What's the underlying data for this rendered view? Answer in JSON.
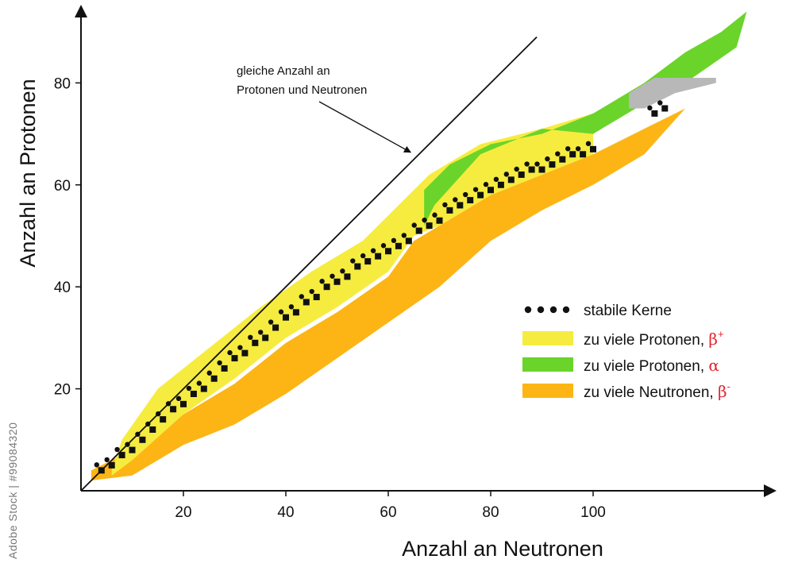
{
  "chart_data": {
    "type": "scatter",
    "xlabel": "Anzahl an Neutronen",
    "ylabel": "Anzahl an Protonen",
    "xticks": [
      20,
      40,
      60,
      80,
      100
    ],
    "yticks": [
      20,
      40,
      60,
      80
    ],
    "xlim": [
      0,
      136
    ],
    "ylim": [
      0,
      94
    ],
    "annotation": {
      "text_lines": [
        "gleiche Anzahl an",
        "Protonen und Neutronen"
      ],
      "reference_line": "N = Z",
      "arrow_target": [
        65,
        67
      ]
    },
    "legend_position": "right",
    "series": [
      {
        "name": "zu viele Neutronen,",
        "greek": "β",
        "sup": "-",
        "color": "#fdb515",
        "region_upper": [
          [
            2,
            4
          ],
          [
            10,
            8
          ],
          [
            20,
            15
          ],
          [
            30,
            21
          ],
          [
            40,
            29
          ],
          [
            50,
            35
          ],
          [
            60,
            42
          ],
          [
            65,
            49
          ],
          [
            70,
            52
          ],
          [
            80,
            58
          ],
          [
            90,
            62
          ],
          [
            100,
            66
          ],
          [
            110,
            71
          ],
          [
            118,
            75
          ]
        ],
        "region_lower": [
          [
            2,
            2
          ],
          [
            10,
            3
          ],
          [
            20,
            9
          ],
          [
            30,
            13
          ],
          [
            40,
            19
          ],
          [
            50,
            26
          ],
          [
            60,
            33
          ],
          [
            70,
            40
          ],
          [
            80,
            49
          ],
          [
            90,
            55
          ],
          [
            100,
            60
          ],
          [
            110,
            66
          ],
          [
            118,
            75
          ]
        ]
      },
      {
        "name": "zu viele Protonen,",
        "greek": "β",
        "sup": "+",
        "color": "#f6ec3f",
        "region_upper": [
          [
            6,
            4
          ],
          [
            8,
            10
          ],
          [
            15,
            20
          ],
          [
            25,
            28
          ],
          [
            35,
            36
          ],
          [
            45,
            43
          ],
          [
            55,
            49
          ],
          [
            63,
            57
          ],
          [
            68,
            62
          ],
          [
            78,
            68
          ],
          [
            90,
            71
          ],
          [
            100,
            74
          ]
        ],
        "region_lower": [
          [
            6,
            3
          ],
          [
            10,
            6
          ],
          [
            20,
            15
          ],
          [
            30,
            22
          ],
          [
            40,
            30
          ],
          [
            50,
            36
          ],
          [
            60,
            43
          ],
          [
            65,
            50
          ],
          [
            70,
            52
          ],
          [
            80,
            58
          ],
          [
            90,
            62
          ],
          [
            100,
            66
          ]
        ]
      },
      {
        "name": "zu viele Protonen,",
        "greek": "α",
        "sup": "",
        "color": "#6bd42a",
        "region_upper": [
          [
            67,
            59
          ],
          [
            72,
            64
          ],
          [
            80,
            68
          ],
          [
            90,
            70
          ],
          [
            100,
            74
          ],
          [
            110,
            80
          ],
          [
            118,
            86
          ],
          [
            125,
            90
          ],
          [
            130,
            94
          ]
        ],
        "region_lower": [
          [
            67,
            52
          ],
          [
            69,
            56
          ],
          [
            78,
            66
          ],
          [
            90,
            71
          ],
          [
            100,
            70
          ],
          [
            110,
            76
          ],
          [
            118,
            80
          ],
          [
            128,
            87
          ]
        ]
      },
      {
        "name": "",
        "greek": "",
        "sup": "",
        "color": "#b8b8b8",
        "region_upper": [
          [
            107,
            78
          ],
          [
            112,
            81
          ],
          [
            124,
            81
          ]
        ],
        "region_lower": [
          [
            107,
            75
          ],
          [
            110,
            75
          ],
          [
            116,
            78
          ],
          [
            124,
            80
          ]
        ]
      },
      {
        "name": "stabile Kerne",
        "greek": "",
        "sup": "",
        "color": "#111111",
        "points": [
          [
            4,
            4
          ],
          [
            6,
            5
          ],
          [
            8,
            7
          ],
          [
            10,
            8
          ],
          [
            12,
            10
          ],
          [
            14,
            12
          ],
          [
            16,
            14
          ],
          [
            18,
            16
          ],
          [
            20,
            17
          ],
          [
            22,
            19
          ],
          [
            24,
            20
          ],
          [
            26,
            22
          ],
          [
            28,
            24
          ],
          [
            30,
            26
          ],
          [
            32,
            27
          ],
          [
            34,
            29
          ],
          [
            36,
            30
          ],
          [
            38,
            32
          ],
          [
            40,
            34
          ],
          [
            42,
            35
          ],
          [
            44,
            37
          ],
          [
            46,
            38
          ],
          [
            48,
            40
          ],
          [
            50,
            41
          ],
          [
            52,
            42
          ],
          [
            54,
            44
          ],
          [
            56,
            45
          ],
          [
            58,
            46
          ],
          [
            60,
            47
          ],
          [
            62,
            48
          ],
          [
            64,
            49
          ],
          [
            66,
            51
          ],
          [
            68,
            52
          ],
          [
            70,
            53
          ],
          [
            72,
            55
          ],
          [
            74,
            56
          ],
          [
            76,
            57
          ],
          [
            78,
            58
          ],
          [
            80,
            59
          ],
          [
            82,
            60
          ],
          [
            84,
            61
          ],
          [
            86,
            62
          ],
          [
            88,
            63
          ],
          [
            90,
            63
          ],
          [
            92,
            64
          ],
          [
            94,
            65
          ],
          [
            96,
            66
          ],
          [
            98,
            66
          ],
          [
            100,
            67
          ],
          [
            112,
            74
          ],
          [
            114,
            75
          ]
        ]
      }
    ]
  },
  "watermark": "Adobe Stock | #99084320"
}
